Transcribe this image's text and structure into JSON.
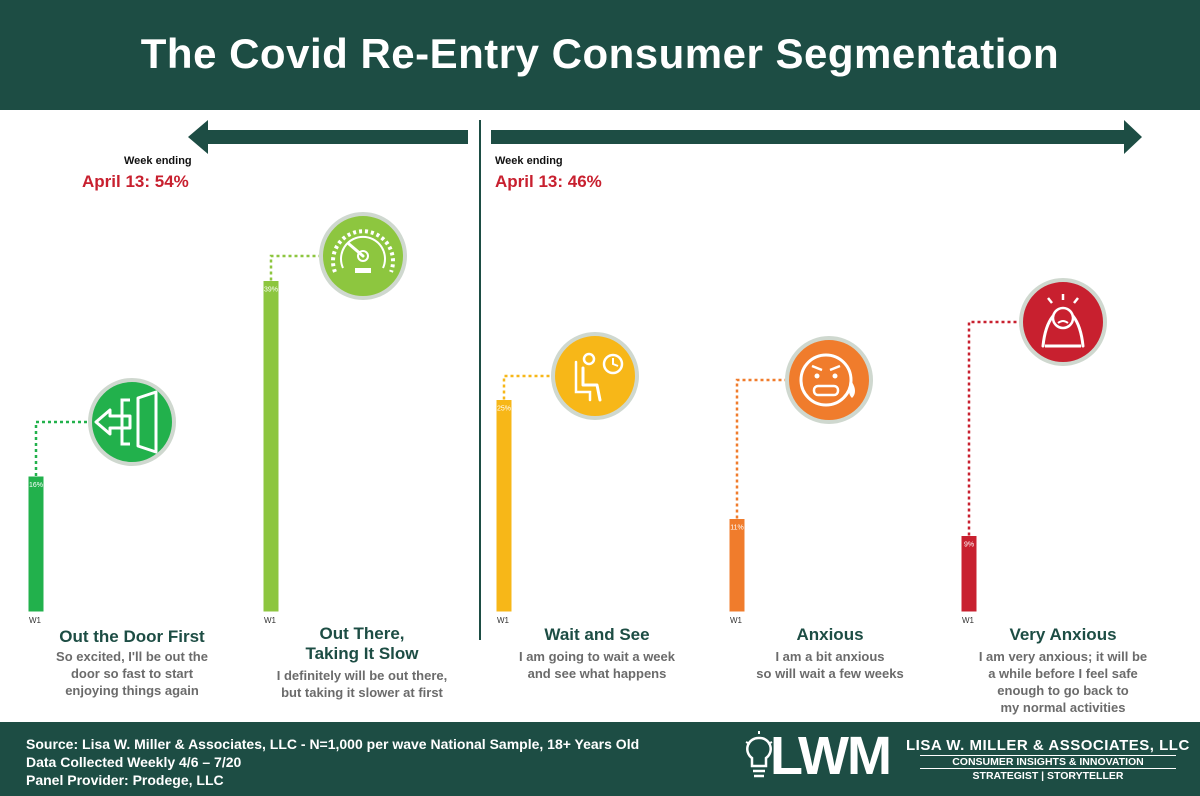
{
  "title": "The Covid Re-Entry Consumer Segmentation",
  "left_group": {
    "week_label": "Week ending",
    "total_label": "April 13: 54%"
  },
  "right_group": {
    "week_label": "Week ending",
    "total_label": "April 13: 46%"
  },
  "colors": {
    "header": "#1d4d44",
    "out_the_door": "#22b14c",
    "out_there": "#8dc63f",
    "wait_and_see": "#f7b718",
    "anxious": "#f07c2c",
    "very_anxious": "#c8202f",
    "highlight": "#c8202f"
  },
  "chart_data": {
    "type": "bar",
    "categories": [
      "Out the Door First",
      "Out There, Taking It Slow",
      "Wait and See",
      "Anxious",
      "Very Anxious"
    ],
    "x_tick_label": "W1",
    "series": [
      {
        "values": [
          16,
          39,
          25,
          11,
          9
        ]
      }
    ],
    "data_labels": [
      "16%",
      "39%",
      "25%",
      "11%",
      "9%"
    ],
    "ylim": [
      0,
      40
    ],
    "grid": false,
    "legend": "none"
  },
  "segments": [
    {
      "title": "Out the Door First",
      "desc_lines": [
        "So excited, I'll be out the",
        "door so fast to start",
        "enjoying things again"
      ],
      "icon": "exit-door-icon"
    },
    {
      "title_lines": [
        "Out There,",
        "Taking It Slow"
      ],
      "desc_lines": [
        "I definitely will be out there,",
        "but taking it slower at first"
      ],
      "icon": "speedometer-icon"
    },
    {
      "title": "Wait and See",
      "desc_lines": [
        "I am going to wait a week",
        "and see what happens"
      ],
      "icon": "waiting-person-icon"
    },
    {
      "title": "Anxious",
      "desc_lines": [
        "I am a bit anxious",
        "so will wait a few weeks"
      ],
      "icon": "anxious-face-icon"
    },
    {
      "title": "Very Anxious",
      "desc_lines": [
        "I am very anxious; it will be",
        "a while before I feel safe",
        "enough to go back to",
        "my normal activities"
      ],
      "icon": "stressed-person-icon"
    }
  ],
  "footer": {
    "source_lines": [
      "Source: Lisa W. Miller & Associates, LLC - N=1,000 per wave National Sample, 18+ Years Old",
      "Data Collected Weekly 4/6 – 7/20",
      "Panel Provider: Prodege, LLC"
    ],
    "logo_mark": "LWM",
    "company": "LISA W. MILLER & ASSOCIATES, LLC",
    "tagline": "CONSUMER INSIGHTS & INNOVATION",
    "tagline2": "STRATEGIST | STORYTELLER"
  }
}
